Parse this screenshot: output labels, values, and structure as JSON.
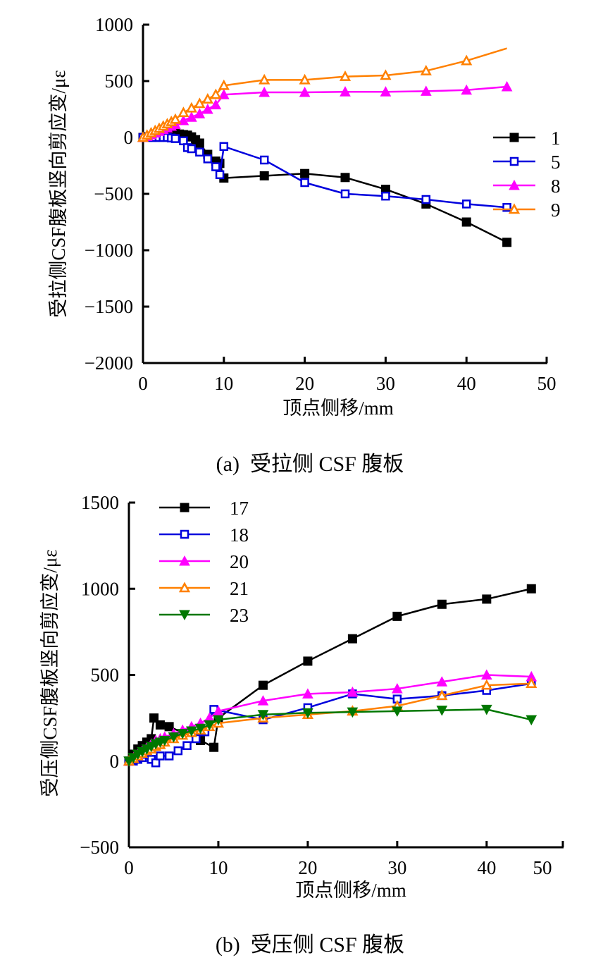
{
  "chart_data": [
    {
      "type": "line",
      "panel": "a",
      "caption": "(a)  受拉侧 CSF 腹板",
      "xlabel": "顶点侧移/mm",
      "ylabel": "受拉侧CSF腹板竖向剪应变/με",
      "xlim": [
        0,
        50
      ],
      "ylim": [
        -2000,
        1000
      ],
      "xticks": [
        0,
        10,
        20,
        30,
        40,
        50
      ],
      "yticks": [
        1000,
        500,
        0,
        -500,
        -1000,
        -1500,
        -2000
      ],
      "ytick_labels": [
        "1000",
        "500",
        "0",
        "−500",
        "−1000",
        "−1500",
        "−2000"
      ],
      "grid": false,
      "legend_position": "right",
      "series": [
        {
          "name": "1",
          "color": "#000000",
          "marker": "square-filled",
          "x": [
            0,
            0.5,
            1,
            1.5,
            2,
            2.5,
            3,
            3.5,
            4,
            4.5,
            5,
            5.5,
            6,
            6.5,
            7,
            8,
            9,
            9.5,
            10,
            15,
            20,
            25,
            30,
            35,
            40,
            45
          ],
          "y": [
            0,
            5,
            10,
            15,
            20,
            25,
            30,
            30,
            35,
            30,
            25,
            20,
            5,
            -20,
            -50,
            -150,
            -210,
            -230,
            -360,
            -340,
            -320,
            -355,
            -460,
            -590,
            -750,
            -930
          ]
        },
        {
          "name": "5",
          "color": "#0000dd",
          "marker": "square-open",
          "x": [
            0,
            0.5,
            1,
            1.5,
            2,
            2.5,
            3,
            3.5,
            4,
            5,
            5.5,
            6,
            7,
            8,
            9,
            9.5,
            10,
            15,
            20,
            25,
            30,
            35,
            40,
            45
          ],
          "y": [
            0,
            0,
            0,
            0,
            0,
            0,
            0,
            -5,
            -10,
            -30,
            -90,
            -100,
            -130,
            -190,
            -260,
            -330,
            -80,
            -200,
            -400,
            -500,
            -520,
            -550,
            -590,
            -620
          ]
        },
        {
          "name": "8",
          "color": "#ff00ff",
          "marker": "triangle-up-filled",
          "x": [
            0,
            0.5,
            1,
            1.5,
            2,
            2.5,
            3,
            3.5,
            4,
            5,
            6,
            7,
            8,
            9,
            10,
            15,
            20,
            25,
            30,
            35,
            40,
            45
          ],
          "y": [
            0,
            10,
            25,
            40,
            55,
            70,
            85,
            100,
            115,
            150,
            180,
            210,
            250,
            290,
            380,
            400,
            400,
            405,
            405,
            410,
            420,
            450
          ]
        },
        {
          "name": "9",
          "color": "#ff8000",
          "marker": "triangle-up-open",
          "x": [
            0,
            0.5,
            1,
            1.5,
            2,
            2.5,
            3,
            3.5,
            4,
            5,
            6,
            7,
            8,
            9,
            10,
            15,
            20,
            25,
            30,
            35,
            40,
            45
          ],
          "y": [
            0,
            20,
            40,
            60,
            80,
            100,
            120,
            140,
            160,
            220,
            260,
            300,
            340,
            380,
            460,
            510,
            510,
            540,
            550,
            590,
            680,
            790
          ],
          "last_point_marker": false
        }
      ]
    },
    {
      "type": "line",
      "panel": "b",
      "caption": "(b)  受压侧 CSF 腹板",
      "xlabel": "顶点侧移/mm",
      "ylabel": "受压侧CSF腹板竖向剪应变/με",
      "xlim": [
        0,
        50
      ],
      "ylim": [
        -500,
        1500
      ],
      "xticks": [
        0,
        10,
        20,
        30,
        40,
        50
      ],
      "yticks": [
        1500,
        1000,
        500,
        0,
        -500
      ],
      "ytick_labels": [
        "1500",
        "1000",
        "500",
        "0",
        "−500"
      ],
      "grid": false,
      "legend_position": "top-left",
      "series": [
        {
          "name": "17",
          "color": "#000000",
          "marker": "square-filled",
          "x": [
            0,
            0.5,
            1,
            1.5,
            2,
            2.5,
            2.8,
            3.5,
            4.5,
            8,
            9.5,
            10,
            15,
            20,
            25,
            30,
            35,
            40,
            45
          ],
          "y": [
            0,
            40,
            70,
            90,
            110,
            130,
            250,
            210,
            200,
            120,
            80,
            250,
            440,
            580,
            710,
            840,
            910,
            940,
            1000
          ]
        },
        {
          "name": "18",
          "color": "#0000dd",
          "marker": "square-open",
          "x": [
            0,
            0.5,
            1,
            1.5,
            2,
            2.5,
            3,
            3.5,
            4.5,
            5.5,
            6.5,
            7.5,
            8.5,
            9.5,
            15,
            20,
            25,
            30,
            35,
            40,
            45
          ],
          "y": [
            0,
            0,
            10,
            20,
            40,
            10,
            -10,
            30,
            30,
            60,
            90,
            130,
            170,
            300,
            240,
            310,
            390,
            360,
            380,
            410,
            450
          ]
        },
        {
          "name": "20",
          "color": "#ff00ff",
          "marker": "triangle-up-filled",
          "x": [
            0,
            0.5,
            1,
            1.5,
            2,
            2.5,
            3,
            3.5,
            4,
            5,
            6,
            7,
            8,
            9,
            10,
            15,
            20,
            25,
            30,
            35,
            40,
            45
          ],
          "y": [
            0,
            20,
            40,
            60,
            80,
            100,
            120,
            130,
            140,
            160,
            180,
            200,
            220,
            250,
            290,
            350,
            390,
            400,
            420,
            460,
            500,
            490
          ]
        },
        {
          "name": "21",
          "color": "#ff8000",
          "marker": "triangle-up-open",
          "x": [
            0,
            0.5,
            1,
            1.5,
            2,
            2.5,
            3,
            3.5,
            4,
            5,
            6,
            7,
            8,
            9,
            10,
            15,
            20,
            25,
            30,
            35,
            40,
            45
          ],
          "y": [
            0,
            15,
            30,
            45,
            60,
            70,
            85,
            95,
            110,
            130,
            150,
            165,
            180,
            200,
            220,
            250,
            270,
            290,
            320,
            380,
            440,
            450
          ]
        },
        {
          "name": "23",
          "color": "#007700",
          "marker": "triangle-down-filled",
          "x": [
            0,
            0.5,
            1,
            1.5,
            2,
            2.5,
            3,
            3.5,
            4,
            5,
            6,
            7,
            8,
            9,
            10,
            15,
            20,
            25,
            30,
            35,
            40,
            45
          ],
          "y": [
            0,
            20,
            40,
            55,
            70,
            85,
            100,
            110,
            120,
            140,
            160,
            175,
            190,
            210,
            240,
            270,
            280,
            285,
            290,
            295,
            300,
            240
          ]
        }
      ]
    }
  ]
}
